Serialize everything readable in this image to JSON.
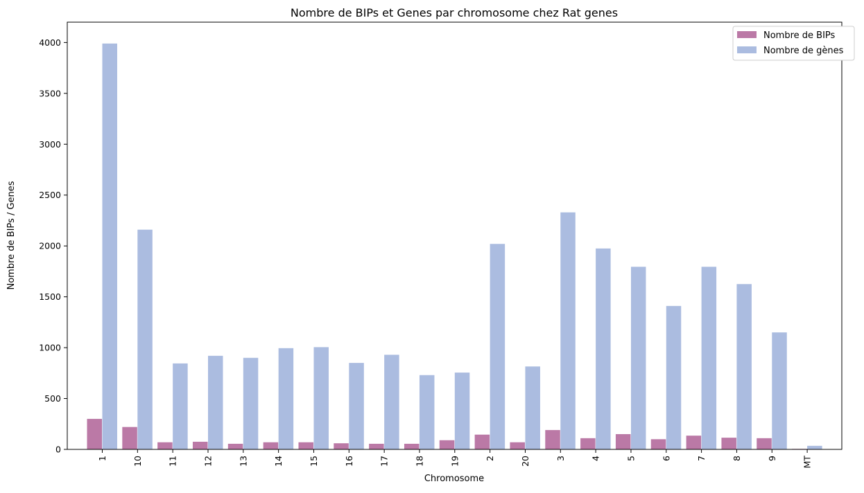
{
  "chart_data": {
    "type": "bar",
    "title": "Nombre de BIPs et Genes par chromosome chez Rat genes",
    "xlabel": "Chromosome",
    "ylabel": "Nombre de BIPs / Genes",
    "ylim": [
      0,
      4200
    ],
    "yticks": [
      0,
      500,
      1000,
      1500,
      2000,
      2500,
      3000,
      3500,
      4000
    ],
    "grid": false,
    "legend_position": "top-right",
    "categories": [
      "1",
      "10",
      "11",
      "12",
      "13",
      "14",
      "15",
      "16",
      "17",
      "18",
      "19",
      "2",
      "20",
      "3",
      "4",
      "5",
      "6",
      "7",
      "8",
      "9",
      "MT"
    ],
    "series": [
      {
        "name": "Nombre de BIPs",
        "color": "#bb79a6",
        "values": [
          300,
          220,
          70,
          75,
          55,
          70,
          70,
          60,
          55,
          55,
          90,
          145,
          70,
          190,
          110,
          150,
          100,
          135,
          115,
          110,
          5
        ]
      },
      {
        "name": "Nombre de gènes",
        "color": "#abbce0",
        "values": [
          3990,
          2160,
          845,
          920,
          900,
          995,
          1005,
          850,
          930,
          730,
          755,
          2020,
          815,
          2330,
          1975,
          1795,
          1410,
          1795,
          1625,
          1150,
          35
        ]
      }
    ]
  }
}
